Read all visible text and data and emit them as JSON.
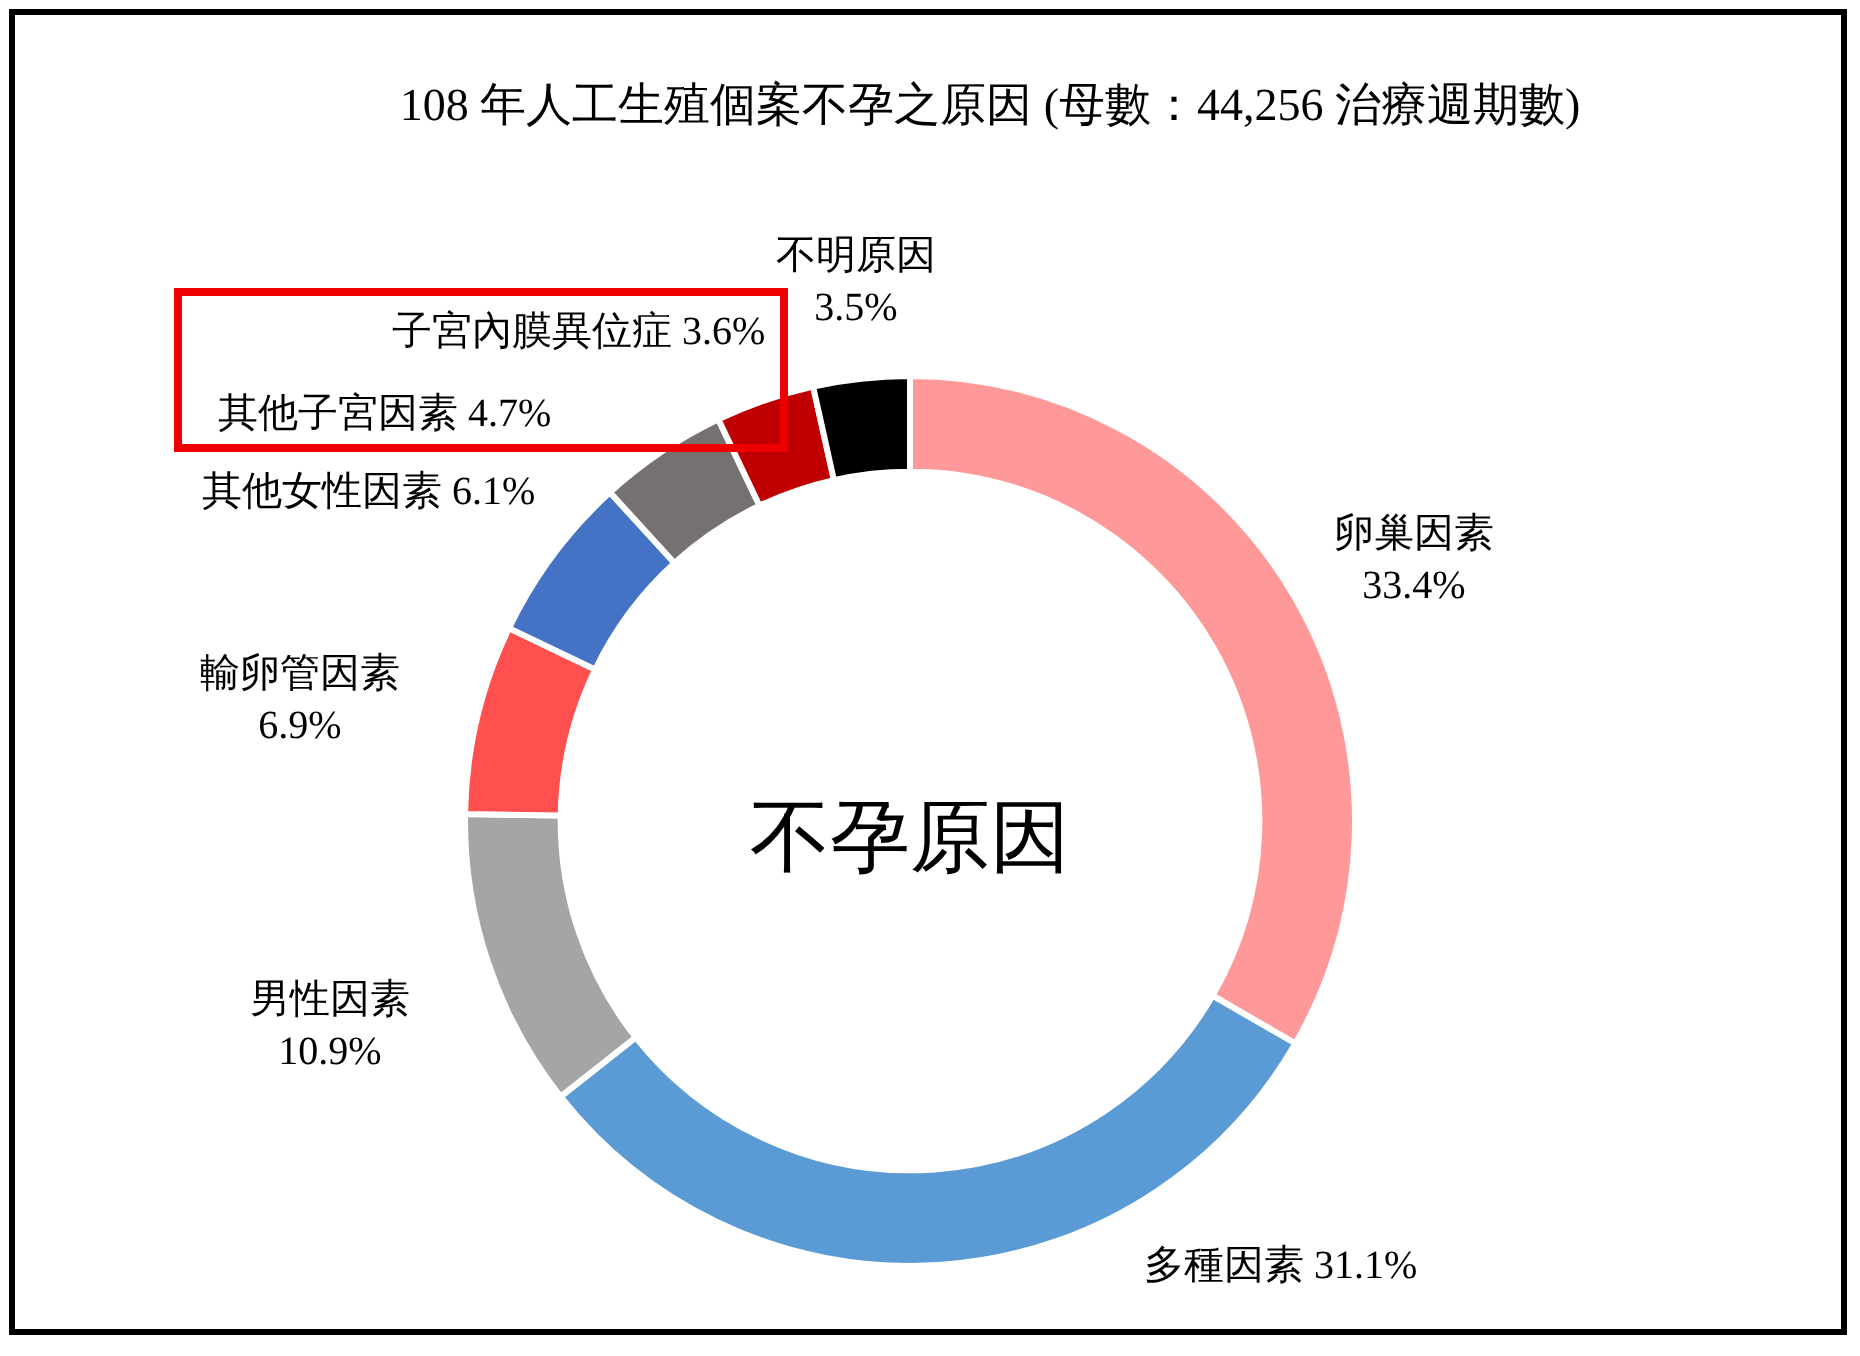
{
  "chart_data": {
    "type": "donut",
    "title": "108 年人工生殖個案不孕之原因 (母數：44,256 治療週期數)",
    "categories": [
      "卵巢因素",
      "多種因素",
      "男性因素",
      "輸卵管因素",
      "其他女性因素",
      "其他子宮因素",
      "子宮內膜異位症",
      "不明原因"
    ],
    "values": [
      33.4,
      31.1,
      10.9,
      6.9,
      6.1,
      4.7,
      3.6,
      3.5
    ],
    "colors": [
      "#ff9999",
      "#5b9bd5",
      "#a5a5a5",
      "#ff4f4f",
      "#4472c4",
      "#767171",
      "#c00000",
      "#000000"
    ],
    "value_labels": [
      "33.4%",
      "31.1%",
      "10.9%",
      "6.9%",
      "6.1%",
      "4.7%",
      "3.6%",
      "3.5%"
    ],
    "annotations": [
      "不孕原因"
    ]
  }
}
